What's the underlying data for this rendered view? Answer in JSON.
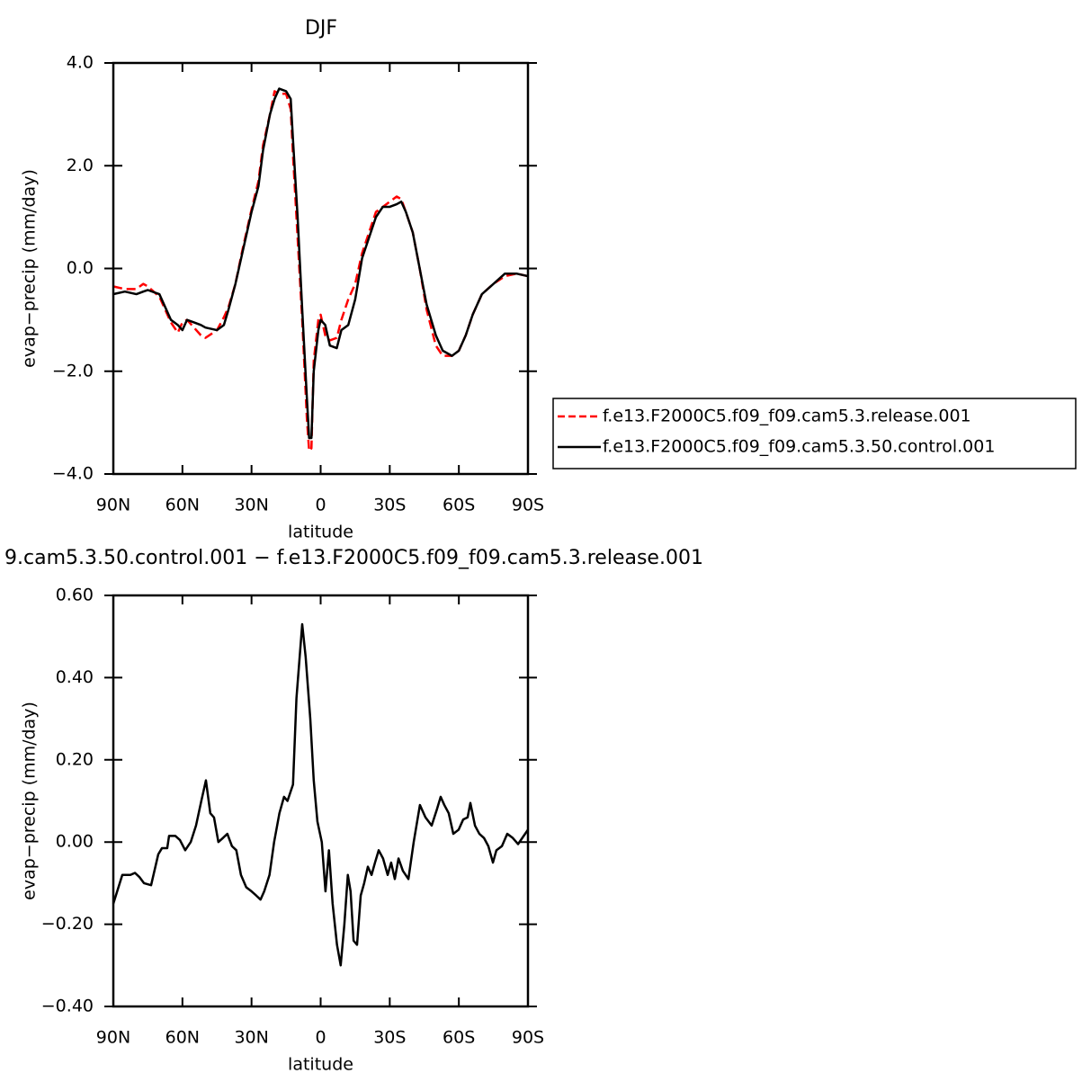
{
  "chart_data": [
    {
      "type": "line",
      "title": "DJF",
      "xlabel": "latitude",
      "ylabel": "evap−precip (mm/day)",
      "x": [
        90,
        85,
        80,
        77,
        75,
        70,
        65,
        62,
        60,
        58,
        55,
        52,
        50,
        45,
        42,
        40,
        37,
        34,
        30,
        27,
        25,
        22,
        20,
        18,
        15,
        13,
        12,
        10,
        8,
        6,
        5,
        4,
        3,
        1,
        0,
        -2,
        -4,
        -7,
        -9,
        -12,
        -15,
        -18,
        -21,
        -24,
        -27,
        -30,
        -33,
        -35,
        -37,
        -40,
        -43,
        -46,
        -50,
        -53,
        -57,
        -60,
        -63,
        -66,
        -70,
        -75,
        -80,
        -85,
        -90
      ],
      "xlim": [
        90,
        -90
      ],
      "xticks": [
        {
          "value": 90,
          "label": "90N"
        },
        {
          "value": 60,
          "label": "60N"
        },
        {
          "value": 30,
          "label": "30N"
        },
        0,
        {
          "value": -30,
          "label": "30S"
        },
        {
          "value": -60,
          "label": "60S"
        },
        {
          "value": -90,
          "label": "90S"
        }
      ],
      "ylim": [
        -4,
        4
      ],
      "yticks": [
        {
          "value": -4,
          "label": "−4.0"
        },
        {
          "value": -2,
          "label": "−2.0"
        },
        {
          "value": 0,
          "label": "0.0"
        },
        {
          "value": 2,
          "label": "2.0"
        },
        {
          "value": 4,
          "label": "4.0"
        }
      ],
      "legend": "right",
      "series": [
        {
          "name": "f.e13.F2000C5.f09_f09.cam5.3.release.001",
          "color": "#ff0000",
          "dashed": true,
          "values": [
            -0.35,
            -0.4,
            -0.4,
            -0.3,
            -0.35,
            -0.55,
            -1.05,
            -1.25,
            -1.05,
            -1.0,
            -1.15,
            -1.3,
            -1.35,
            -1.2,
            -0.95,
            -0.75,
            -0.3,
            0.35,
            1.15,
            1.7,
            2.4,
            3.0,
            3.45,
            3.4,
            3.4,
            3.1,
            2.2,
            0.6,
            -1.0,
            -2.9,
            -3.55,
            -3.5,
            -1.8,
            -1.0,
            -0.9,
            -1.3,
            -1.4,
            -1.35,
            -1.0,
            -0.6,
            -0.3,
            0.3,
            0.7,
            1.1,
            1.2,
            1.3,
            1.4,
            1.35,
            1.1,
            0.7,
            0,
            -0.8,
            -1.5,
            -1.7,
            -1.7,
            -1.6,
            -1.3,
            -0.9,
            -0.5,
            -0.3,
            -0.15,
            -0.1,
            -0.15
          ]
        },
        {
          "name": "f.e13.F2000C5.f09_f09.cam5.3.50.control.001",
          "color": "#000000",
          "dashed": false,
          "values": [
            -0.5,
            -0.45,
            -0.5,
            -0.45,
            -0.42,
            -0.5,
            -1.0,
            -1.1,
            -1.2,
            -1.0,
            -1.05,
            -1.1,
            -1.15,
            -1.2,
            -1.1,
            -0.8,
            -0.3,
            0.3,
            1.1,
            1.6,
            2.3,
            3.0,
            3.3,
            3.5,
            3.45,
            3.3,
            2.5,
            1.0,
            -0.8,
            -2.5,
            -3.3,
            -3.3,
            -2.0,
            -1.2,
            -1.0,
            -1.1,
            -1.5,
            -1.55,
            -1.2,
            -1.1,
            -0.6,
            0.2,
            0.6,
            1.0,
            1.2,
            1.2,
            1.25,
            1.3,
            1.1,
            0.7,
            0,
            -0.7,
            -1.3,
            -1.6,
            -1.7,
            -1.6,
            -1.3,
            -0.9,
            -0.5,
            -0.3,
            -0.1,
            -0.1,
            -0.15
          ]
        }
      ]
    },
    {
      "type": "line",
      "title": "9.cam5.3.50.control.001 − f.e13.F2000C5.f09_f09.cam5.3.release.001",
      "xlabel": "latitude",
      "ylabel": "evap−precip (mm/day)",
      "x": [
        90,
        86.1,
        82.6,
        80.6,
        78.7,
        76.7,
        73.6,
        70.5,
        68.9,
        66.6,
        65.8,
        63.1,
        61.1,
        58.8,
        56.4,
        54.1,
        51.8,
        49.8,
        47.9,
        46.3,
        44.4,
        42.4,
        40.5,
        38.5,
        36.6,
        34.6,
        32.3,
        30.0,
        28.0,
        26.1,
        24.5,
        22.2,
        20.2,
        17.9,
        15.9,
        14.4,
        12.0,
        10.5,
        8.0,
        6.5,
        4.5,
        3.0,
        1.4,
        -0.5,
        -2.1,
        -3.6,
        -5.2,
        -7.1,
        -8.7,
        -10.3,
        -11.8,
        -13.0,
        -14.3,
        -15.8,
        -17.4,
        -18.9,
        -20.5,
        -22.1,
        -23.6,
        -25.2,
        -27.1,
        -29.1,
        -30.6,
        -32.2,
        -33.8,
        -35.7,
        -38.1,
        -40.4,
        -43.1,
        -45.5,
        -48.2,
        -50.5,
        -52.1,
        -53.7,
        -55.6,
        -57.6,
        -59.9,
        -61.9,
        -63.8,
        -65.0,
        -67.0,
        -68.9,
        -70.9,
        -72.8,
        -74.8,
        -76.3,
        -78.7,
        -81.0,
        -83.4,
        -85.7,
        -90
      ],
      "xlim": [
        90,
        -90
      ],
      "xticks": [
        {
          "value": 90,
          "label": "90N"
        },
        {
          "value": 60,
          "label": "60N"
        },
        {
          "value": 30,
          "label": "30N"
        },
        0,
        {
          "value": -30,
          "label": "30S"
        },
        {
          "value": -60,
          "label": "60S"
        },
        {
          "value": -90,
          "label": "90S"
        }
      ],
      "ylim": [
        -0.4,
        0.6
      ],
      "yticks": [
        {
          "value": -0.4,
          "label": "−0.40"
        },
        {
          "value": -0.2,
          "label": "−0.20"
        },
        {
          "value": 0,
          "label": "0.00"
        },
        {
          "value": 0.2,
          "label": "0.20"
        },
        {
          "value": 0.4,
          "label": "0.40"
        },
        {
          "value": 0.6,
          "label": "0.60"
        }
      ],
      "series": [
        {
          "color": "#000000",
          "dashed": false,
          "values": [
            -0.15,
            -0.08,
            -0.08,
            -0.075,
            -0.085,
            -0.1,
            -0.105,
            -0.03,
            -0.015,
            -0.015,
            0.015,
            0.015,
            0.005,
            -0.02,
            0.0,
            0.04,
            0.1,
            0.15,
            0.07,
            0.06,
            0.0,
            0.01,
            0.02,
            -0.01,
            -0.02,
            -0.08,
            -0.11,
            -0.12,
            -0.13,
            -0.14,
            -0.12,
            -0.08,
            0.0,
            0.07,
            0.11,
            0.1,
            0.14,
            0.35,
            0.53,
            0.45,
            0.3,
            0.15,
            0.05,
            0.0,
            -0.12,
            -0.02,
            -0.15,
            -0.25,
            -0.3,
            -0.2,
            -0.08,
            -0.12,
            -0.24,
            -0.25,
            -0.13,
            -0.1,
            -0.06,
            -0.08,
            -0.05,
            -0.02,
            -0.04,
            -0.08,
            -0.05,
            -0.09,
            -0.04,
            -0.07,
            -0.09,
            0.0,
            0.09,
            0.06,
            0.04,
            0.08,
            0.11,
            0.09,
            0.07,
            0.02,
            0.03,
            0.055,
            0.06,
            0.095,
            0.04,
            0.02,
            0.01,
            -0.01,
            -0.05,
            -0.02,
            -0.01,
            0.02,
            0.01,
            -0.005,
            0.03
          ]
        }
      ]
    }
  ]
}
